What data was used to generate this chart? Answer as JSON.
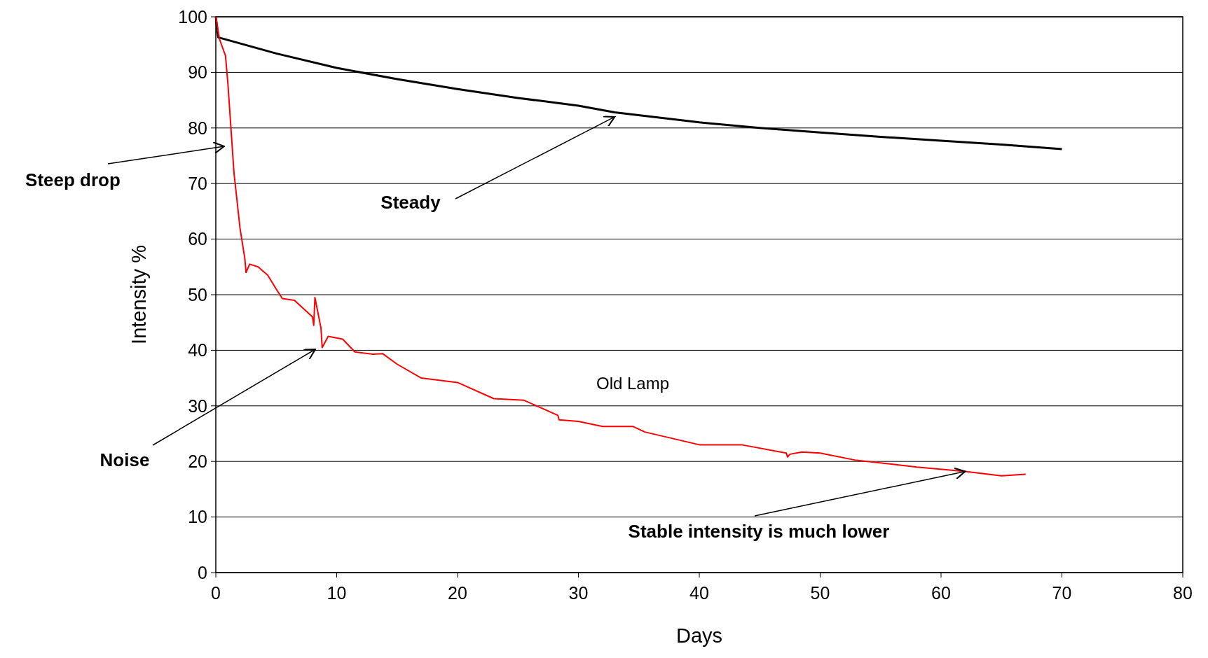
{
  "chart_data": {
    "type": "line",
    "xlabel": "Days",
    "ylabel": "Intensity %",
    "xlim": [
      0,
      80
    ],
    "ylim": [
      0,
      100
    ],
    "xticks": [
      0,
      10,
      20,
      30,
      40,
      50,
      60,
      70,
      80
    ],
    "yticks": [
      0,
      10,
      20,
      30,
      40,
      50,
      60,
      70,
      80,
      90,
      100
    ],
    "grid": "y",
    "marker": "none",
    "line_style": "solid",
    "series": [
      {
        "color": "#000000",
        "x": [
          0,
          0.2,
          5,
          10,
          15,
          20,
          25,
          30,
          33,
          40,
          45,
          50,
          55,
          60,
          65,
          70
        ],
        "values": [
          100,
          96.3,
          93.4,
          90.8,
          88.8,
          87,
          85.4,
          84,
          82.8,
          81,
          80,
          79.2,
          78.4,
          77.7,
          77,
          76.2
        ]
      },
      {
        "name": "Old Lamp",
        "color": "#ff0000",
        "x": [
          0,
          0.3,
          0.8,
          1,
          1.5,
          2,
          2.4,
          2.5,
          2.8,
          3.5,
          4.3,
          5,
          5.5,
          6.5,
          7.5,
          8,
          8.1,
          8.2,
          8.7,
          8.8,
          9.3,
          10.5,
          11.5,
          13,
          13.8,
          15,
          17,
          20,
          23,
          25.5,
          28.3,
          28.4,
          30,
          32,
          34.5,
          35.5,
          40,
          43.5,
          47.2,
          47.3,
          47.5,
          48.5,
          50,
          53,
          56,
          58,
          62,
          65,
          67
        ],
        "values": [
          100,
          96,
          93,
          88,
          72,
          62,
          56.5,
          54,
          55.5,
          55,
          53.5,
          51,
          49.3,
          49,
          47,
          46,
          44.5,
          49.5,
          44,
          40.5,
          42.5,
          42,
          39.7,
          39.3,
          39.4,
          37.5,
          35,
          34.2,
          31.3,
          31,
          28.3,
          27.5,
          27.2,
          26.3,
          26.3,
          25.3,
          23,
          23,
          21.5,
          20.8,
          21.3,
          21.7,
          21.5,
          20.2,
          19.5,
          19,
          18.2,
          17.4,
          17.7
        ]
      }
    ],
    "annotations": [
      "Steep drop",
      {
        "text": "Steady",
        "x": 33,
        "y": 82
      },
      "Noise",
      {
        "text": "Stable intensity is much lower",
        "x": 62,
        "y": 18.2
      }
    ]
  }
}
